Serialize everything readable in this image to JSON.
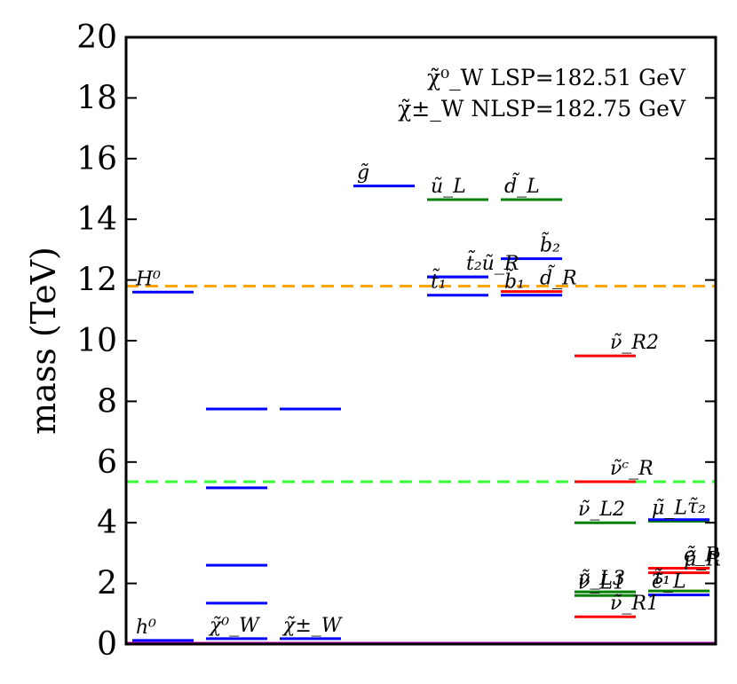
{
  "chart_data": {
    "type": "spectrum",
    "title": "",
    "xlabel": "",
    "ylabel": "mass (TeV)",
    "ylim": [
      0,
      20
    ],
    "yticks": [
      0,
      2,
      4,
      6,
      8,
      10,
      12,
      14,
      16,
      18,
      20
    ],
    "columns": 8,
    "annotations": [
      "χ̃⁰_W  LSP=182.51 GeV",
      "χ̃±_W  NLSP=182.75 GeV"
    ],
    "reference_lines": [
      {
        "name": "orange-dashed",
        "value": 11.8,
        "color": "#ffa500",
        "style": "dashed"
      },
      {
        "name": "green-dashed",
        "value": 5.35,
        "color": "#33ff33",
        "style": "dashed"
      },
      {
        "name": "magenta-baseline",
        "value": 0.03,
        "color": "#bf00bf",
        "style": "solid"
      }
    ],
    "levels": [
      {
        "name": "h0",
        "column": 0,
        "value": 0.12,
        "color": "#0000ff",
        "label": "h⁰"
      },
      {
        "name": "H0",
        "column": 0,
        "value": 11.6,
        "color": "#0000ff",
        "label": "H⁰"
      },
      {
        "name": "chi0-1",
        "column": 1,
        "value": 0.18,
        "color": "#0000ff",
        "label": "χ̃⁰_W"
      },
      {
        "name": "chi0-2",
        "column": 1,
        "value": 1.35,
        "color": "#0000ff",
        "label": ""
      },
      {
        "name": "chi0-3",
        "column": 1,
        "value": 2.6,
        "color": "#0000ff",
        "label": ""
      },
      {
        "name": "chi0-4",
        "column": 1,
        "value": 5.15,
        "color": "#0000ff",
        "label": ""
      },
      {
        "name": "chi0-5",
        "column": 1,
        "value": 7.75,
        "color": "#0000ff",
        "label": ""
      },
      {
        "name": "chipm-1",
        "column": 2,
        "value": 0.18,
        "color": "#0000ff",
        "label": "χ̃±_W"
      },
      {
        "name": "chipm-2",
        "column": 2,
        "value": 7.75,
        "color": "#0000ff",
        "label": ""
      },
      {
        "name": "gluino",
        "column": 3,
        "value": 15.1,
        "color": "#0000ff",
        "label": "g̃"
      },
      {
        "name": "uL",
        "column": 4,
        "value": 14.65,
        "color": "#008000",
        "label": "ũ_L"
      },
      {
        "name": "t2",
        "column": 4,
        "value": 12.1,
        "color": "#0000ff",
        "label": ""
      },
      {
        "name": "t1",
        "column": 4,
        "value": 11.5,
        "color": "#0000ff",
        "label": "t̃₁"
      },
      {
        "name": "uR",
        "column": 4,
        "value": 12.1,
        "color": "#0000ff",
        "label": "t̃₂ũ_R"
      },
      {
        "name": "dL",
        "column": 5,
        "value": 14.65,
        "color": "#008000",
        "label": "d̃_L"
      },
      {
        "name": "b2",
        "column": 5,
        "value": 12.7,
        "color": "#0000ff",
        "label": "b̃₂"
      },
      {
        "name": "dR",
        "column": 5,
        "value": 11.62,
        "color": "#ff0000",
        "label": "d̃_R"
      },
      {
        "name": "b1",
        "column": 5,
        "value": 11.5,
        "color": "#0000ff",
        "label": "b̃₁"
      },
      {
        "name": "nuR2",
        "column": 6,
        "value": 9.5,
        "color": "#ff0000",
        "label": "ν̃_R2"
      },
      {
        "name": "nuRc",
        "column": 6,
        "value": 5.35,
        "color": "#ff0000",
        "label": "ν̃ᶜ_R"
      },
      {
        "name": "nuL2",
        "column": 6,
        "value": 4.0,
        "color": "#008000",
        "label": "ν̃_L2"
      },
      {
        "name": "nuL3",
        "column": 6,
        "value": 1.72,
        "color": "#008000",
        "label": "ν̃_L3"
      },
      {
        "name": "nuL1",
        "column": 6,
        "value": 1.6,
        "color": "#008000",
        "label": "ν̃_L1"
      },
      {
        "name": "nuR1",
        "column": 6,
        "value": 0.9,
        "color": "#ff0000",
        "label": "ν̃_R1"
      },
      {
        "name": "muL",
        "column": 7,
        "value": 4.05,
        "color": "#008000",
        "label": "μ̃_L"
      },
      {
        "name": "tau2",
        "column": 7,
        "value": 4.1,
        "color": "#0000ff",
        "label": "τ̃₂"
      },
      {
        "name": "muR",
        "column": 7,
        "value": 2.5,
        "color": "#ff0000",
        "label": "ẽ_R"
      },
      {
        "name": "eR",
        "column": 7,
        "value": 2.35,
        "color": "#ff0000",
        "label": "μ̃_R"
      },
      {
        "name": "tau1",
        "column": 7,
        "value": 1.75,
        "color": "#008000",
        "label": "τ̃₁"
      },
      {
        "name": "eL",
        "column": 7,
        "value": 1.62,
        "color": "#0000ff",
        "label": "ẽ_L"
      }
    ]
  }
}
